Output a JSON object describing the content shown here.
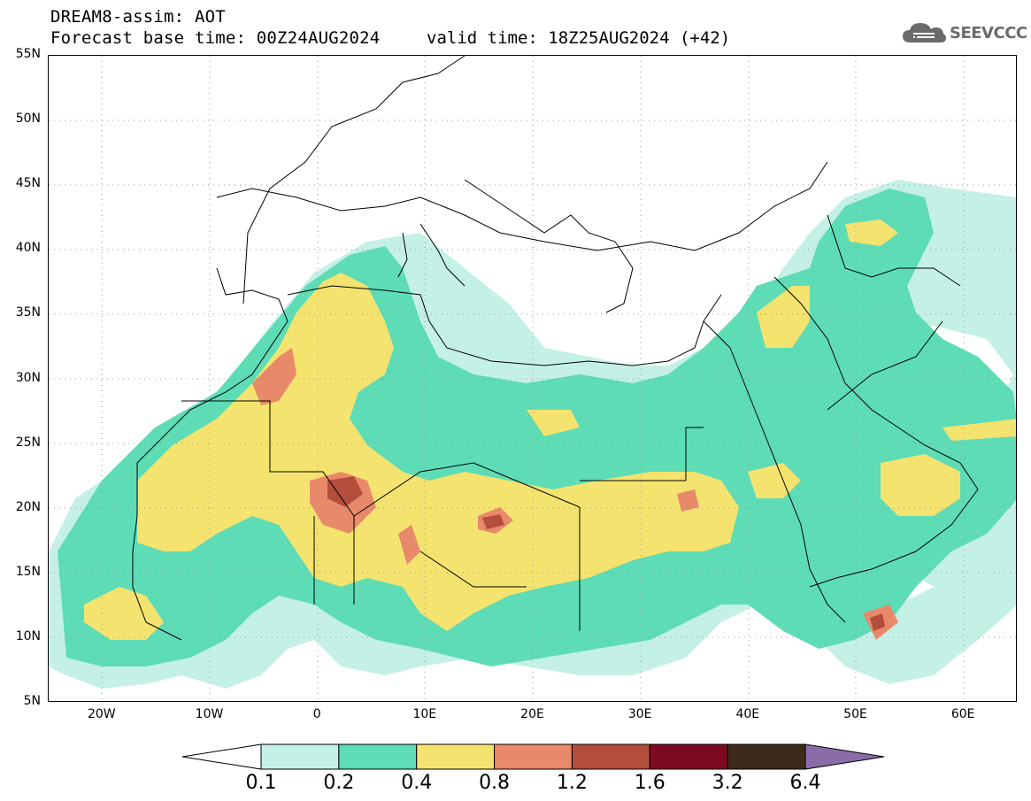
{
  "header": {
    "title": "DREAM8-assim: AOT",
    "base_time": "Forecast base time: 00Z24AUG2024",
    "valid_time": "valid time: 18Z25AUG2024 (+42)"
  },
  "logo": {
    "text": "SEEVCCC",
    "icon": "cloud-icon"
  },
  "axes": {
    "lat_labels": [
      "55N",
      "50N",
      "45N",
      "40N",
      "35N",
      "30N",
      "25N",
      "20N",
      "15N",
      "10N",
      "5N"
    ],
    "lon_labels": [
      "20W",
      "10W",
      "0",
      "10E",
      "20E",
      "30E",
      "40E",
      "50E",
      "60E"
    ],
    "lat_range": [
      5,
      55
    ],
    "lon_range": [
      -25,
      65
    ],
    "grid": "dotted"
  },
  "colorbar": {
    "levels": [
      "0.1",
      "0.2",
      "0.4",
      "0.8",
      "1.2",
      "1.6",
      "3.2",
      "6.4"
    ],
    "colors": [
      "#ffffff",
      "#c4f0e6",
      "#5ddcb6",
      "#f4e36e",
      "#e8896a",
      "#b34d3c",
      "#7e0a21",
      "#3e2a1a",
      "#8a6da8"
    ]
  }
}
